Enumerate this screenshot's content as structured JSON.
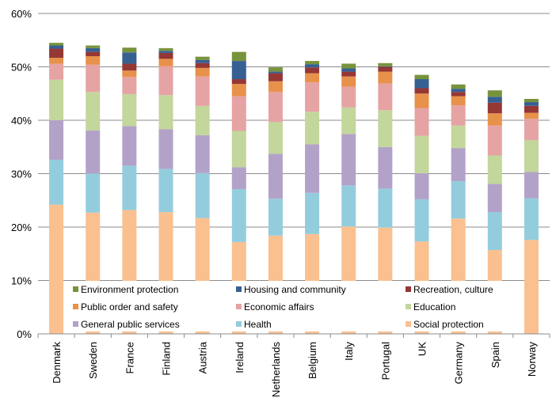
{
  "chart_data": {
    "type": "bar",
    "stacked": true,
    "title": "",
    "xlabel": "",
    "ylabel": "",
    "ylim": [
      0,
      60
    ],
    "yticks": [
      "0%",
      "10%",
      "20%",
      "30%",
      "40%",
      "50%",
      "60%"
    ],
    "ytick_values": [
      0,
      10,
      20,
      30,
      40,
      50,
      60
    ],
    "grid": true,
    "legend_position": "inside-bottom",
    "categories": [
      "Denmark",
      "Sweden",
      "France",
      "Finland",
      "Austria",
      "Ireland",
      "Netherlands",
      "Belgium",
      "Italy",
      "Portugal",
      "UK",
      "Germany",
      "Spain",
      "Norway"
    ],
    "series": [
      {
        "name": "Social protection",
        "color": "#FAC090",
        "values": [
          24.2,
          22.7,
          23.2,
          22.8,
          21.7,
          17.2,
          18.4,
          18.7,
          20.1,
          19.9,
          17.3,
          21.6,
          15.7,
          17.6
        ]
      },
      {
        "name": "Health",
        "color": "#93CDDD",
        "values": [
          8.4,
          7.3,
          8.3,
          8.1,
          8.4,
          9.9,
          6.9,
          7.7,
          7.7,
          7.3,
          7.9,
          7.0,
          7.1,
          7.8
        ]
      },
      {
        "name": "General public services",
        "color": "#B3A2C7",
        "values": [
          7.4,
          8.1,
          7.4,
          7.4,
          7.1,
          4.1,
          8.4,
          9.1,
          9.6,
          7.8,
          4.9,
          6.2,
          5.3,
          4.9
        ]
      },
      {
        "name": "Education",
        "color": "#C3D69B",
        "values": [
          7.6,
          7.2,
          6.0,
          6.4,
          5.5,
          6.8,
          6.0,
          6.1,
          5.0,
          6.9,
          7.0,
          4.2,
          5.3,
          6.0
        ]
      },
      {
        "name": "Economic affairs",
        "color": "#E6A3A3",
        "values": [
          3.0,
          5.1,
          3.2,
          5.4,
          5.5,
          6.5,
          5.6,
          5.5,
          3.9,
          5.0,
          5.2,
          3.8,
          5.6,
          4.0
        ]
      },
      {
        "name": "Public order and safety",
        "color": "#E8914A",
        "values": [
          1.1,
          1.6,
          1.2,
          1.4,
          1.6,
          2.3,
          2.0,
          1.7,
          1.9,
          2.2,
          2.7,
          1.7,
          2.3,
          1.1
        ]
      },
      {
        "name": "Recreation, culture",
        "color": "#953735",
        "values": [
          1.7,
          0.8,
          1.3,
          1.1,
          0.9,
          0.9,
          1.5,
          1.1,
          0.9,
          0.9,
          1.0,
          0.8,
          2.0,
          1.3
        ]
      },
      {
        "name": "Housing and community",
        "color": "#366092",
        "values": [
          0.6,
          0.7,
          2.1,
          0.4,
          0.6,
          3.4,
          0.3,
          0.6,
          0.6,
          0.1,
          1.7,
          0.6,
          1.1,
          0.7
        ]
      },
      {
        "name": "Environment protection",
        "color": "#77933C",
        "values": [
          0.5,
          0.5,
          0.9,
          0.5,
          0.6,
          1.7,
          0.8,
          0.6,
          0.9,
          0.6,
          0.8,
          0.8,
          1.2,
          0.6
        ]
      }
    ]
  }
}
